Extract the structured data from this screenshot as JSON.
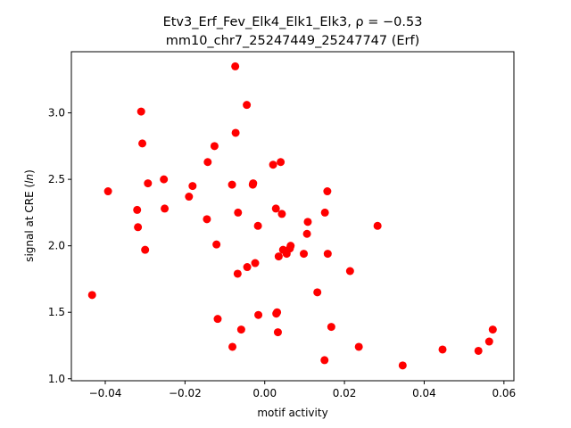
{
  "chart_data": {
    "type": "scatter",
    "title_line1": "Etv3_Erf_Fev_Elk4_Elk1_Elk3, ρ = −0.53",
    "title_line2": "mm10_chr7_25247449_25247747 (Erf)",
    "xlabel": "motif activity",
    "ylabel": "signal at CRE (ln)",
    "xlim": [
      -0.0485,
      0.0625
    ],
    "ylim": [
      0.985,
      3.46
    ],
    "xticks": [
      -0.04,
      -0.02,
      0.0,
      0.02,
      0.04,
      0.06
    ],
    "xtick_labels": [
      "−0.04",
      "−0.02",
      "0.00",
      "0.02",
      "0.04",
      "0.06"
    ],
    "yticks": [
      1.0,
      1.5,
      2.0,
      2.5,
      3.0
    ],
    "ytick_labels": [
      "1.0",
      "1.5",
      "2.0",
      "2.5",
      "3.0"
    ],
    "marker_color": "#ff0000",
    "grid": false,
    "legend": "none",
    "points": [
      {
        "x": -0.0433,
        "y": 1.63
      },
      {
        "x": -0.0393,
        "y": 2.41
      },
      {
        "x": -0.032,
        "y": 2.27
      },
      {
        "x": -0.0318,
        "y": 2.14
      },
      {
        "x": -0.031,
        "y": 3.01
      },
      {
        "x": -0.0307,
        "y": 2.77
      },
      {
        "x": -0.03,
        "y": 1.97
      },
      {
        "x": -0.0293,
        "y": 2.47
      },
      {
        "x": -0.0253,
        "y": 2.5
      },
      {
        "x": -0.0251,
        "y": 2.28
      },
      {
        "x": -0.019,
        "y": 2.37
      },
      {
        "x": -0.0181,
        "y": 2.45
      },
      {
        "x": -0.0145,
        "y": 2.2
      },
      {
        "x": -0.0143,
        "y": 2.63
      },
      {
        "x": -0.0126,
        "y": 2.75
      },
      {
        "x": -0.0121,
        "y": 2.01
      },
      {
        "x": -0.0118,
        "y": 1.45
      },
      {
        "x": -0.0082,
        "y": 2.46
      },
      {
        "x": -0.0081,
        "y": 1.24
      },
      {
        "x": -0.0074,
        "y": 3.35
      },
      {
        "x": -0.0073,
        "y": 2.85
      },
      {
        "x": -0.0068,
        "y": 1.79
      },
      {
        "x": -0.0067,
        "y": 2.25
      },
      {
        "x": -0.0059,
        "y": 1.37
      },
      {
        "x": -0.0045,
        "y": 3.06
      },
      {
        "x": -0.0044,
        "y": 1.84
      },
      {
        "x": -0.003,
        "y": 2.46
      },
      {
        "x": -0.0029,
        "y": 2.47
      },
      {
        "x": -0.0024,
        "y": 1.87
      },
      {
        "x": -0.0017,
        "y": 2.15
      },
      {
        "x": -0.0016,
        "y": 1.48
      },
      {
        "x": 0.0021,
        "y": 2.61
      },
      {
        "x": 0.0028,
        "y": 2.28
      },
      {
        "x": 0.0029,
        "y": 1.49
      },
      {
        "x": 0.0031,
        "y": 1.5
      },
      {
        "x": 0.0033,
        "y": 1.35
      },
      {
        "x": 0.0035,
        "y": 1.92
      },
      {
        "x": 0.004,
        "y": 2.63
      },
      {
        "x": 0.0043,
        "y": 2.24
      },
      {
        "x": 0.0046,
        "y": 1.97
      },
      {
        "x": 0.0055,
        "y": 1.94
      },
      {
        "x": 0.0063,
        "y": 1.98
      },
      {
        "x": 0.0065,
        "y": 2.0
      },
      {
        "x": 0.0098,
        "y": 1.94
      },
      {
        "x": 0.0106,
        "y": 2.09
      },
      {
        "x": 0.0108,
        "y": 2.18
      },
      {
        "x": 0.0132,
        "y": 1.65
      },
      {
        "x": 0.015,
        "y": 1.14
      },
      {
        "x": 0.0151,
        "y": 2.25
      },
      {
        "x": 0.0157,
        "y": 2.41
      },
      {
        "x": 0.0158,
        "y": 1.94
      },
      {
        "x": 0.0167,
        "y": 1.39
      },
      {
        "x": 0.0214,
        "y": 1.81
      },
      {
        "x": 0.0236,
        "y": 1.24
      },
      {
        "x": 0.0283,
        "y": 2.15
      },
      {
        "x": 0.0346,
        "y": 1.1
      },
      {
        "x": 0.0446,
        "y": 1.22
      },
      {
        "x": 0.0536,
        "y": 1.21
      },
      {
        "x": 0.0563,
        "y": 1.28
      },
      {
        "x": 0.0572,
        "y": 1.37
      }
    ]
  }
}
